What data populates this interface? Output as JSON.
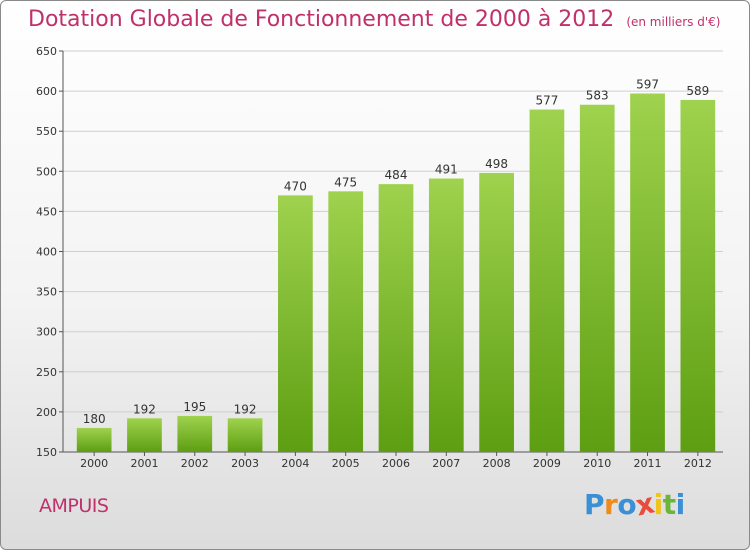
{
  "title": "Dotation Globale de Fonctionnement de 2000 à 2012",
  "subtitle": "(en milliers d'€)",
  "commune": "AMPUIS",
  "logo": {
    "letters": [
      "P",
      "r",
      "o",
      "x",
      "i",
      "t",
      "i"
    ],
    "colors": [
      "#3a8fd6",
      "#f08a1c",
      "#3a8fd6",
      "#e84c3d",
      "#f0c419",
      "#6bb63a",
      "#3a8fd6"
    ]
  },
  "colors": {
    "bar_top": "#9fd24e",
    "bar_bottom": "#5d9e12",
    "title": "#c0306a",
    "grid": "#cfcfcf"
  },
  "chart_data": {
    "type": "bar",
    "categories": [
      "2000",
      "2001",
      "2002",
      "2003",
      "2004",
      "2005",
      "2006",
      "2007",
      "2008",
      "2009",
      "2010",
      "2011",
      "2012"
    ],
    "values": [
      180,
      192,
      195,
      192,
      470,
      475,
      484,
      491,
      498,
      577,
      583,
      597,
      589
    ],
    "value_labels": [
      "180",
      "192",
      "195",
      "192",
      "470",
      "475",
      "484",
      "491",
      "498",
      "577",
      "583",
      "597",
      "589"
    ],
    "ylim": [
      150,
      650
    ],
    "yticks": [
      150,
      200,
      250,
      300,
      350,
      400,
      450,
      500,
      550,
      600,
      650
    ],
    "ytick_labels": [
      "150",
      "200",
      "250",
      "300",
      "350",
      "400",
      "450",
      "500",
      "550",
      "600",
      "650"
    ],
    "grid": true,
    "title": "Dotation Globale de Fonctionnement de 2000 à 2012",
    "xlabel": "",
    "ylabel": ""
  }
}
